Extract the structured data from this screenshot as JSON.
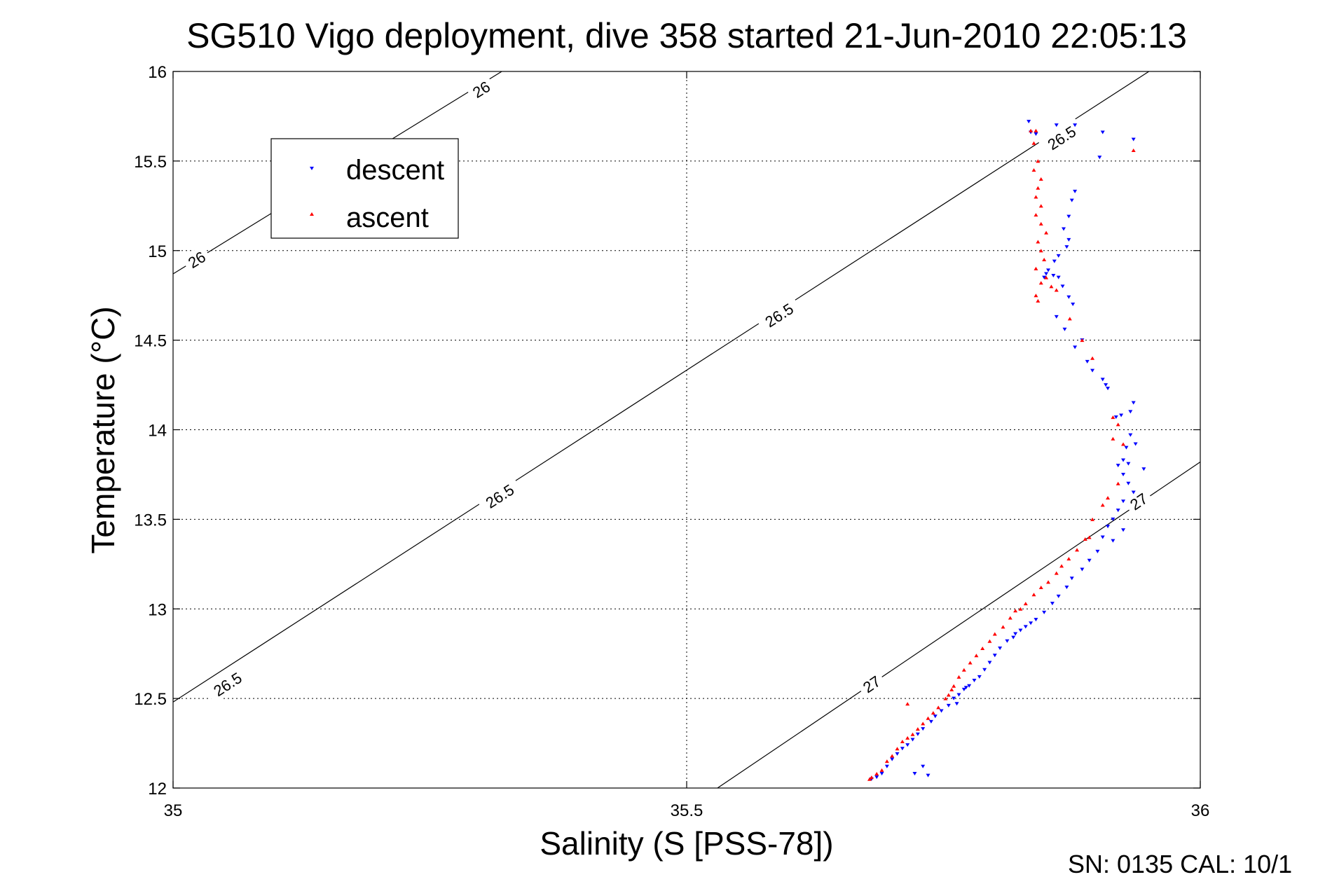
{
  "chart_data": {
    "type": "scatter",
    "title": "SG510 Vigo deployment, dive 358 started 21-Jun-2010 22:05:13",
    "xlabel": "Salinity (S [PSS-78])",
    "ylabel": "Temperature (°C)",
    "xlim": [
      35,
      36
    ],
    "ylim": [
      12,
      16
    ],
    "xticks": [
      "35",
      "35.5",
      "36"
    ],
    "yticks": [
      "12",
      "12.5",
      "13",
      "13.5",
      "14",
      "14.5",
      "15",
      "15.5",
      "16"
    ],
    "grid": true,
    "legend_position": "top-left",
    "footer": "SN: 0135  CAL: 10/1",
    "contours": [
      {
        "label": "26",
        "points": [
          [
            35.0,
            14.87
          ],
          [
            35.32,
            16.0
          ]
        ],
        "label_positions": [
          [
            35.023,
            14.95
          ],
          [
            35.3,
            15.9
          ]
        ]
      },
      {
        "label": "26.5",
        "points": [
          [
            35.0,
            12.48
          ],
          [
            35.95,
            16.0
          ]
        ],
        "label_positions": [
          [
            35.053,
            12.58
          ],
          [
            35.318,
            13.63
          ],
          [
            35.59,
            14.64
          ],
          [
            35.865,
            15.63
          ]
        ]
      },
      {
        "label": "27",
        "points": [
          [
            35.53,
            12.0
          ],
          [
            36.0,
            13.82
          ]
        ],
        "label_positions": [
          [
            35.68,
            12.58
          ],
          [
            35.94,
            13.6
          ]
        ]
      }
    ],
    "series": [
      {
        "name": "descent",
        "color": "#0000ff",
        "marker": "triangle-down",
        "points": [
          [
            35.833,
            15.72
          ],
          [
            35.835,
            15.66
          ],
          [
            35.84,
            15.65
          ],
          [
            35.86,
            15.7
          ],
          [
            35.878,
            15.7
          ],
          [
            35.905,
            15.66
          ],
          [
            35.935,
            15.62
          ],
          [
            35.902,
            15.52
          ],
          [
            35.878,
            15.33
          ],
          [
            35.875,
            15.28
          ],
          [
            35.872,
            15.19
          ],
          [
            35.867,
            15.12
          ],
          [
            35.872,
            15.06
          ],
          [
            35.87,
            15.02
          ],
          [
            35.862,
            14.97
          ],
          [
            35.858,
            14.94
          ],
          [
            35.852,
            14.89
          ],
          [
            35.85,
            14.87
          ],
          [
            35.848,
            14.85
          ],
          [
            35.857,
            14.86
          ],
          [
            35.862,
            14.85
          ],
          [
            35.866,
            14.8
          ],
          [
            35.872,
            14.74
          ],
          [
            35.876,
            14.7
          ],
          [
            35.86,
            14.63
          ],
          [
            35.868,
            14.56
          ],
          [
            35.885,
            14.5
          ],
          [
            35.878,
            14.46
          ],
          [
            35.89,
            14.38
          ],
          [
            35.895,
            14.33
          ],
          [
            35.905,
            14.28
          ],
          [
            35.908,
            14.25
          ],
          [
            35.91,
            14.23
          ],
          [
            35.935,
            14.15
          ],
          [
            35.932,
            14.1
          ],
          [
            35.923,
            14.08
          ],
          [
            35.918,
            14.07
          ],
          [
            35.932,
            13.97
          ],
          [
            35.937,
            13.92
          ],
          [
            35.928,
            13.9
          ],
          [
            35.925,
            13.83
          ],
          [
            35.92,
            13.8
          ],
          [
            35.93,
            13.81
          ],
          [
            35.925,
            13.75
          ],
          [
            35.945,
            13.78
          ],
          [
            35.93,
            13.7
          ],
          [
            35.935,
            13.65
          ],
          [
            35.925,
            13.6
          ],
          [
            35.92,
            13.55
          ],
          [
            35.915,
            13.5
          ],
          [
            35.91,
            13.46
          ],
          [
            35.925,
            13.44
          ],
          [
            35.905,
            13.4
          ],
          [
            35.915,
            13.38
          ],
          [
            35.9,
            13.32
          ],
          [
            35.892,
            13.27
          ],
          [
            35.885,
            13.22
          ],
          [
            35.875,
            13.17
          ],
          [
            35.87,
            13.12
          ],
          [
            35.862,
            13.07
          ],
          [
            35.856,
            13.03
          ],
          [
            35.848,
            12.98
          ],
          [
            35.84,
            12.94
          ],
          [
            35.835,
            12.92
          ],
          [
            35.83,
            12.9
          ],
          [
            35.825,
            12.88
          ],
          [
            35.82,
            12.86
          ],
          [
            35.818,
            12.84
          ],
          [
            35.812,
            12.82
          ],
          [
            35.805,
            12.78
          ],
          [
            35.8,
            12.74
          ],
          [
            35.795,
            12.7
          ],
          [
            35.79,
            12.66
          ],
          [
            35.785,
            12.62
          ],
          [
            35.78,
            12.6
          ],
          [
            35.775,
            12.57
          ],
          [
            35.772,
            12.56
          ],
          [
            35.77,
            12.55
          ],
          [
            35.765,
            12.52
          ],
          [
            35.76,
            12.5
          ],
          [
            35.763,
            12.47
          ],
          [
            35.755,
            12.46
          ],
          [
            35.748,
            12.43
          ],
          [
            35.742,
            12.4
          ],
          [
            35.738,
            12.37
          ],
          [
            35.73,
            12.33
          ],
          [
            35.725,
            12.3
          ],
          [
            35.72,
            12.27
          ],
          [
            35.715,
            12.24
          ],
          [
            35.71,
            12.22
          ],
          [
            35.705,
            12.19
          ],
          [
            35.7,
            12.16
          ],
          [
            35.695,
            12.12
          ],
          [
            35.73,
            12.12
          ],
          [
            35.69,
            12.08
          ],
          [
            35.685,
            12.06
          ],
          [
            35.722,
            12.08
          ],
          [
            35.735,
            12.07
          ],
          [
            35.68,
            12.05
          ]
        ]
      },
      {
        "name": "ascent",
        "color": "#ff0000",
        "marker": "triangle-up",
        "points": [
          [
            35.835,
            15.67
          ],
          [
            35.84,
            15.67
          ],
          [
            35.838,
            15.6
          ],
          [
            35.842,
            15.5
          ],
          [
            35.838,
            15.45
          ],
          [
            35.845,
            15.4
          ],
          [
            35.842,
            15.35
          ],
          [
            35.84,
            15.3
          ],
          [
            35.845,
            15.25
          ],
          [
            35.84,
            15.2
          ],
          [
            35.845,
            15.15
          ],
          [
            35.85,
            15.1
          ],
          [
            35.842,
            15.05
          ],
          [
            35.845,
            15.0
          ],
          [
            35.848,
            14.95
          ],
          [
            35.84,
            14.9
          ],
          [
            35.85,
            14.85
          ],
          [
            35.845,
            14.82
          ],
          [
            35.855,
            14.8
          ],
          [
            35.84,
            14.75
          ],
          [
            35.842,
            14.72
          ],
          [
            35.86,
            14.78
          ],
          [
            35.873,
            14.62
          ],
          [
            35.885,
            14.5
          ],
          [
            35.895,
            14.4
          ],
          [
            35.915,
            14.07
          ],
          [
            35.92,
            14.03
          ],
          [
            35.915,
            13.95
          ],
          [
            35.925,
            13.92
          ],
          [
            35.92,
            13.7
          ],
          [
            35.91,
            13.62
          ],
          [
            35.905,
            13.58
          ],
          [
            35.895,
            13.5
          ],
          [
            35.892,
            13.4
          ],
          [
            35.888,
            13.39
          ],
          [
            35.88,
            13.33
          ],
          [
            35.872,
            13.28
          ],
          [
            35.865,
            13.24
          ],
          [
            35.86,
            13.2
          ],
          [
            35.852,
            13.15
          ],
          [
            35.845,
            13.12
          ],
          [
            35.838,
            13.08
          ],
          [
            35.83,
            13.03
          ],
          [
            35.825,
            13.0
          ],
          [
            35.82,
            12.99
          ],
          [
            35.815,
            12.95
          ],
          [
            35.808,
            12.9
          ],
          [
            35.8,
            12.86
          ],
          [
            35.795,
            12.82
          ],
          [
            35.788,
            12.78
          ],
          [
            35.782,
            12.74
          ],
          [
            35.776,
            12.7
          ],
          [
            35.77,
            12.66
          ],
          [
            35.765,
            12.62
          ],
          [
            35.76,
            12.57
          ],
          [
            35.758,
            12.55
          ],
          [
            35.752,
            12.5
          ],
          [
            35.745,
            12.45
          ],
          [
            35.74,
            12.42
          ],
          [
            35.735,
            12.39
          ],
          [
            35.73,
            12.36
          ],
          [
            35.725,
            12.33
          ],
          [
            35.72,
            12.3
          ],
          [
            35.715,
            12.28
          ],
          [
            35.71,
            12.26
          ],
          [
            35.705,
            12.22
          ],
          [
            35.7,
            12.18
          ],
          [
            35.695,
            12.15
          ],
          [
            35.69,
            12.1
          ],
          [
            35.685,
            12.08
          ],
          [
            35.68,
            12.06
          ],
          [
            35.678,
            12.05
          ],
          [
            35.935,
            15.56
          ],
          [
            35.755,
            12.52
          ],
          [
            35.715,
            12.47
          ]
        ]
      }
    ]
  }
}
